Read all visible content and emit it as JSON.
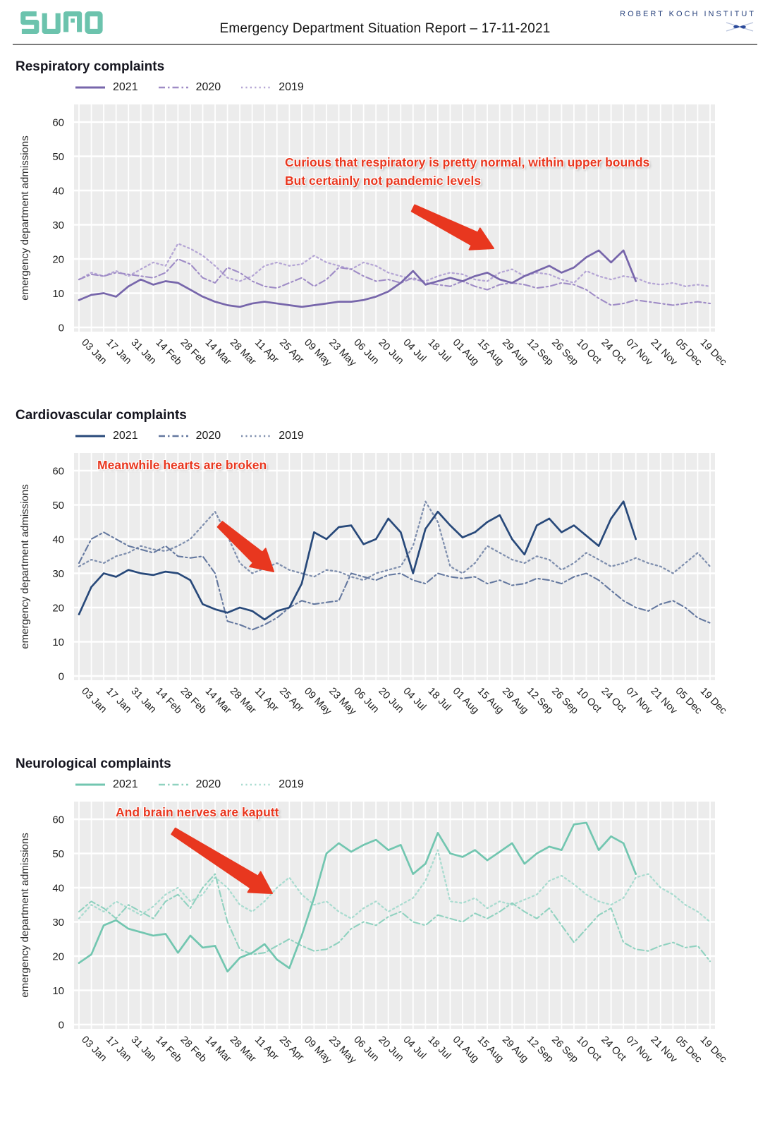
{
  "header": {
    "logo_text": "SUMO",
    "title": "Emergency Department Situation Report – 17-11-2021",
    "org_name": "ROBERT KOCH INSTITUT"
  },
  "colors": {
    "annotation_red": "#e8371f",
    "logo_teal": "#6cc3ad",
    "rki_navy": "#27417c",
    "panel_gray": "#ececec",
    "grid_white": "#ffffff"
  },
  "axis": {
    "ylabel": "emergency department admissions",
    "yticks": [
      0,
      10,
      20,
      30,
      40,
      50,
      60
    ],
    "ylim": [
      0,
      65
    ],
    "xtick_labels": [
      "03 Jan",
      "17 Jan",
      "31 Jan",
      "14 Feb",
      "28 Feb",
      "14 Mar",
      "28 Mar",
      "11 Apr",
      "25 Apr",
      "09 May",
      "23 May",
      "06 Jun",
      "20 Jun",
      "04 Jul",
      "18 Jul",
      "01 Aug",
      "15 Aug",
      "29 Aug",
      "12 Sep",
      "26 Sep",
      "10 Oct",
      "24 Oct",
      "07 Nov",
      "21 Nov",
      "05 Dec",
      "19 Dec"
    ]
  },
  "chart_data": [
    {
      "type": "line",
      "title": "Respiratory complaints",
      "ylabel": "emergency department admissions",
      "ylim": [
        0,
        65
      ],
      "grid": true,
      "legend_position": "top-left",
      "x_unit": "calendar week (weekly values, week 1 = 03 Jan)",
      "xtick_labels": [
        "03 Jan",
        "17 Jan",
        "31 Jan",
        "14 Feb",
        "28 Feb",
        "14 Mar",
        "28 Mar",
        "11 Apr",
        "25 Apr",
        "09 May",
        "23 May",
        "06 Jun",
        "20 Jun",
        "04 Jul",
        "18 Jul",
        "01 Aug",
        "15 Aug",
        "29 Aug",
        "12 Sep",
        "26 Sep",
        "10 Oct",
        "24 Oct",
        "07 Nov",
        "21 Nov",
        "05 Dec",
        "19 Dec"
      ],
      "annotation": [
        "Curious that respiratory is pretty normal, within upper bounds",
        "But certainly not pandemic levels"
      ],
      "series": [
        {
          "name": "2021",
          "style": "solid",
          "color": "#7766ab",
          "values": [
            8,
            9.5,
            10,
            9,
            12,
            14,
            12.5,
            13.5,
            13,
            11,
            9,
            7.5,
            6.5,
            6,
            7,
            7.5,
            7,
            6.5,
            6,
            6.5,
            7,
            7.5,
            7.5,
            8,
            9,
            10.5,
            13,
            16.5,
            12.5,
            13.5,
            14.5,
            13.5,
            15,
            16,
            14,
            13,
            15,
            16.5,
            18,
            16,
            17.5,
            20.5,
            22.5,
            19,
            22.5,
            13.5
          ]
        },
        {
          "name": "2020",
          "style": "dashdot",
          "color": "#9f8cc6",
          "values": [
            14,
            15.5,
            15,
            16,
            15.5,
            15,
            14.5,
            16,
            20,
            18.5,
            14.5,
            13,
            17.5,
            16,
            13.5,
            12,
            11.5,
            13,
            14.5,
            12,
            14,
            17.5,
            17,
            15,
            13.5,
            14,
            13,
            14.5,
            13,
            12.5,
            12,
            13.5,
            12,
            11,
            12.5,
            13,
            12.5,
            11.5,
            12,
            13,
            12.5,
            11,
            8.5,
            6.5,
            7,
            8,
            7.5,
            7,
            6.5,
            7,
            7.5,
            7
          ]
        },
        {
          "name": "2019",
          "style": "dotted",
          "color": "#b5a6d5",
          "values": [
            14,
            16,
            15,
            16.5,
            15,
            17,
            19,
            18,
            24.5,
            23,
            21,
            18,
            14.5,
            13.5,
            15,
            18,
            19,
            18,
            18.5,
            21,
            19,
            18,
            17,
            19,
            18,
            16,
            15,
            14,
            13.5,
            15,
            16,
            15.5,
            14,
            13.5,
            16,
            17,
            15,
            16,
            15.5,
            14,
            13,
            16.5,
            15,
            14,
            15,
            14.5,
            13,
            12.5,
            13,
            12,
            12.5,
            12
          ]
        }
      ]
    },
    {
      "type": "line",
      "title": "Cardiovascular complaints",
      "ylabel": "emergency department admissions",
      "ylim": [
        0,
        65
      ],
      "grid": true,
      "legend_position": "top-left",
      "x_unit": "calendar week (weekly values, week 1 = 03 Jan)",
      "xtick_labels": [
        "03 Jan",
        "17 Jan",
        "31 Jan",
        "14 Feb",
        "28 Feb",
        "14 Mar",
        "28 Mar",
        "11 Apr",
        "25 Apr",
        "09 May",
        "23 May",
        "06 Jun",
        "20 Jun",
        "04 Jul",
        "18 Jul",
        "01 Aug",
        "15 Aug",
        "29 Aug",
        "12 Sep",
        "26 Sep",
        "10 Oct",
        "24 Oct",
        "07 Nov",
        "21 Nov",
        "05 Dec",
        "19 Dec"
      ],
      "annotation": [
        "Meanwhile hearts are broken"
      ],
      "series": [
        {
          "name": "2021",
          "style": "solid",
          "color": "#28497a",
          "values": [
            18,
            26,
            30,
            29,
            31,
            30,
            29.5,
            30.5,
            30,
            28,
            21,
            19.5,
            18.5,
            20,
            19,
            16.5,
            19,
            20,
            27,
            42,
            40,
            43.5,
            44,
            38.5,
            40,
            46,
            42,
            30,
            43,
            48,
            44,
            40.5,
            42,
            45,
            47,
            40,
            35.5,
            44,
            46,
            42,
            44,
            41,
            38,
            46,
            51,
            40
          ]
        },
        {
          "name": "2020",
          "style": "dashdot",
          "color": "#64789f",
          "values": [
            33,
            40,
            42,
            40,
            38,
            37,
            36,
            38,
            35,
            34.5,
            35,
            30,
            16,
            15,
            13.5,
            15,
            17,
            20,
            22,
            21,
            21.5,
            22,
            30,
            29,
            28,
            29.5,
            30,
            28,
            27,
            30,
            29,
            28.5,
            29,
            27,
            28,
            26.5,
            27,
            28.5,
            28,
            27,
            29,
            30,
            28,
            25,
            22,
            20,
            19,
            21,
            22,
            20,
            17,
            15.5
          ]
        },
        {
          "name": "2019",
          "style": "dotted",
          "color": "#7f8fae",
          "values": [
            32,
            34,
            33,
            35,
            36,
            38,
            37,
            36.5,
            38,
            40,
            44,
            48,
            41,
            33,
            30,
            31.5,
            33,
            31,
            30,
            29,
            31,
            30.5,
            29,
            28,
            30,
            31,
            32,
            38,
            51,
            45,
            32,
            30,
            33,
            38,
            36,
            34,
            33,
            35,
            34,
            31,
            33,
            36,
            34,
            32,
            33,
            34.5,
            33,
            32,
            30,
            33,
            36,
            32
          ]
        }
      ]
    },
    {
      "type": "line",
      "title": "Neurological complaints",
      "ylabel": "emergency department admissions",
      "ylim": [
        0,
        65
      ],
      "grid": true,
      "legend_position": "top-left",
      "x_unit": "calendar week (weekly values, week 1 = 03 Jan)",
      "xtick_labels": [
        "03 Jan",
        "17 Jan",
        "31 Jan",
        "14 Feb",
        "28 Feb",
        "14 Mar",
        "28 Mar",
        "11 Apr",
        "25 Apr",
        "09 May",
        "23 May",
        "06 Jun",
        "20 Jun",
        "04 Jul",
        "18 Jul",
        "01 Aug",
        "15 Aug",
        "29 Aug",
        "12 Sep",
        "26 Sep",
        "10 Oct",
        "24 Oct",
        "07 Nov",
        "21 Nov",
        "05 Dec",
        "19 Dec"
      ],
      "annotation": [
        "And brain nerves are kaputt"
      ],
      "series": [
        {
          "name": "2021",
          "style": "solid",
          "color": "#72c6b0",
          "values": [
            18,
            20.5,
            29,
            30.5,
            28,
            27,
            26,
            26.5,
            21,
            26,
            22.5,
            23,
            15.5,
            19.5,
            21,
            23.5,
            19,
            16.5,
            26,
            37,
            50,
            53,
            50.5,
            52.5,
            54,
            51,
            52.5,
            44,
            47,
            56,
            50,
            49,
            51,
            48,
            50.5,
            53,
            47,
            50,
            52,
            51,
            58.5,
            59,
            51,
            55,
            53,
            44
          ]
        },
        {
          "name": "2020",
          "style": "dashdot",
          "color": "#90d2c0",
          "values": [
            33,
            36,
            34,
            31,
            35,
            33,
            31,
            36,
            38,
            34,
            40,
            44,
            30,
            22,
            20.5,
            21,
            23,
            25,
            23,
            21.5,
            22,
            24,
            28,
            30,
            29,
            31.5,
            33,
            30,
            29,
            32,
            31,
            30,
            32.5,
            31,
            33,
            35.5,
            33,
            31,
            34,
            29,
            24,
            28,
            32,
            34,
            24,
            22,
            21.5,
            23,
            24,
            22.5,
            23,
            18.5
          ]
        },
        {
          "name": "2019",
          "style": "dotted",
          "color": "#a9dcd0",
          "values": [
            31,
            35,
            33,
            36,
            34,
            32,
            34.5,
            38,
            40,
            36,
            38,
            43,
            40,
            35,
            33,
            36,
            40,
            43,
            38,
            35,
            36,
            33,
            31,
            34,
            36,
            33,
            35,
            37,
            42,
            51,
            36,
            35.5,
            37,
            34,
            36,
            35,
            36.5,
            38,
            42,
            43.5,
            41,
            38,
            36,
            35,
            37,
            43,
            44,
            40,
            38,
            35,
            33,
            30
          ]
        }
      ]
    }
  ]
}
